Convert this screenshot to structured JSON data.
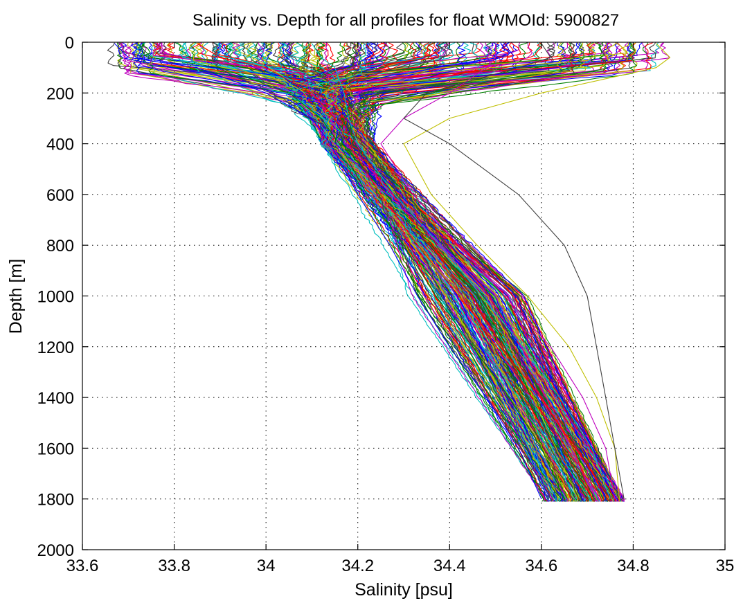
{
  "chart_data": {
    "type": "line",
    "title": "Salinity vs. Depth for all profiles for float WMOId: 5900827",
    "xlabel": "Salinity [psu]",
    "ylabel": "Depth [m]",
    "xlim": [
      33.6,
      35
    ],
    "ylim": [
      0,
      2000
    ],
    "y_reversed": true,
    "grid": true,
    "legend": "none",
    "x_ticks": [
      "33.6",
      "33.8",
      "34",
      "34.2",
      "34.4",
      "34.6",
      "34.8",
      "35"
    ],
    "y_ticks": [
      "0",
      "200",
      "400",
      "600",
      "800",
      "1000",
      "1200",
      "1400",
      "1600",
      "1800",
      "2000"
    ],
    "series_colors": [
      "#0000ff",
      "#008000",
      "#ff0000",
      "#00bfbf",
      "#bf00bf",
      "#bfbf00",
      "#404040"
    ],
    "series_shown_count": 280,
    "series": [
      {
        "depth": [
          5,
          60,
          100,
          200,
          300,
          400,
          600,
          800,
          1000,
          1200,
          1400,
          1600,
          1800
        ],
        "salinity": [
          33.67,
          33.7,
          33.85,
          34.0,
          34.1,
          34.14,
          34.2,
          34.27,
          34.33,
          34.4,
          34.48,
          34.55,
          34.6
        ]
      },
      {
        "depth": [
          5,
          60,
          100,
          200,
          300,
          400,
          600,
          800,
          1000,
          1200,
          1400,
          1600,
          1800
        ],
        "salinity": [
          33.72,
          33.75,
          33.9,
          34.05,
          34.12,
          34.16,
          34.22,
          34.3,
          34.37,
          34.45,
          34.53,
          34.6,
          34.65
        ]
      },
      {
        "depth": [
          5,
          60,
          100,
          200,
          300,
          400,
          600,
          800,
          1000,
          1200,
          1400,
          1600,
          1800
        ],
        "salinity": [
          33.85,
          33.9,
          34.0,
          34.1,
          34.15,
          34.18,
          34.25,
          34.33,
          34.42,
          34.51,
          34.6,
          34.67,
          34.71
        ]
      },
      {
        "depth": [
          5,
          60,
          100,
          200,
          300,
          400,
          600,
          800,
          1000,
          1200,
          1400,
          1600,
          1800
        ],
        "salinity": [
          34.1,
          34.12,
          34.15,
          34.17,
          34.18,
          34.2,
          34.28,
          34.38,
          34.47,
          34.56,
          34.64,
          34.71,
          34.75
        ]
      },
      {
        "depth": [
          5,
          60,
          100,
          200,
          300,
          400,
          600,
          800,
          1000,
          1200,
          1400,
          1600,
          1800
        ],
        "salinity": [
          34.5,
          34.5,
          34.48,
          34.4,
          34.3,
          34.25,
          34.32,
          34.42,
          34.52,
          34.62,
          34.69,
          34.74,
          34.76
        ]
      },
      {
        "depth": [
          5,
          60,
          100,
          200,
          300,
          400,
          600,
          800,
          1000,
          1200,
          1400,
          1600,
          1800
        ],
        "salinity": [
          34.85,
          34.88,
          34.85,
          34.6,
          34.4,
          34.3,
          34.36,
          34.46,
          34.57,
          34.66,
          34.72,
          34.76,
          34.77
        ]
      },
      {
        "depth": [
          5,
          60,
          100,
          200,
          300,
          400,
          600,
          800,
          1000,
          1200,
          1400,
          1600,
          1800
        ],
        "salinity": [
          34.6,
          34.62,
          34.55,
          34.35,
          34.3,
          34.4,
          34.55,
          34.65,
          34.7,
          34.72,
          34.74,
          34.76,
          34.78
        ]
      }
    ]
  }
}
